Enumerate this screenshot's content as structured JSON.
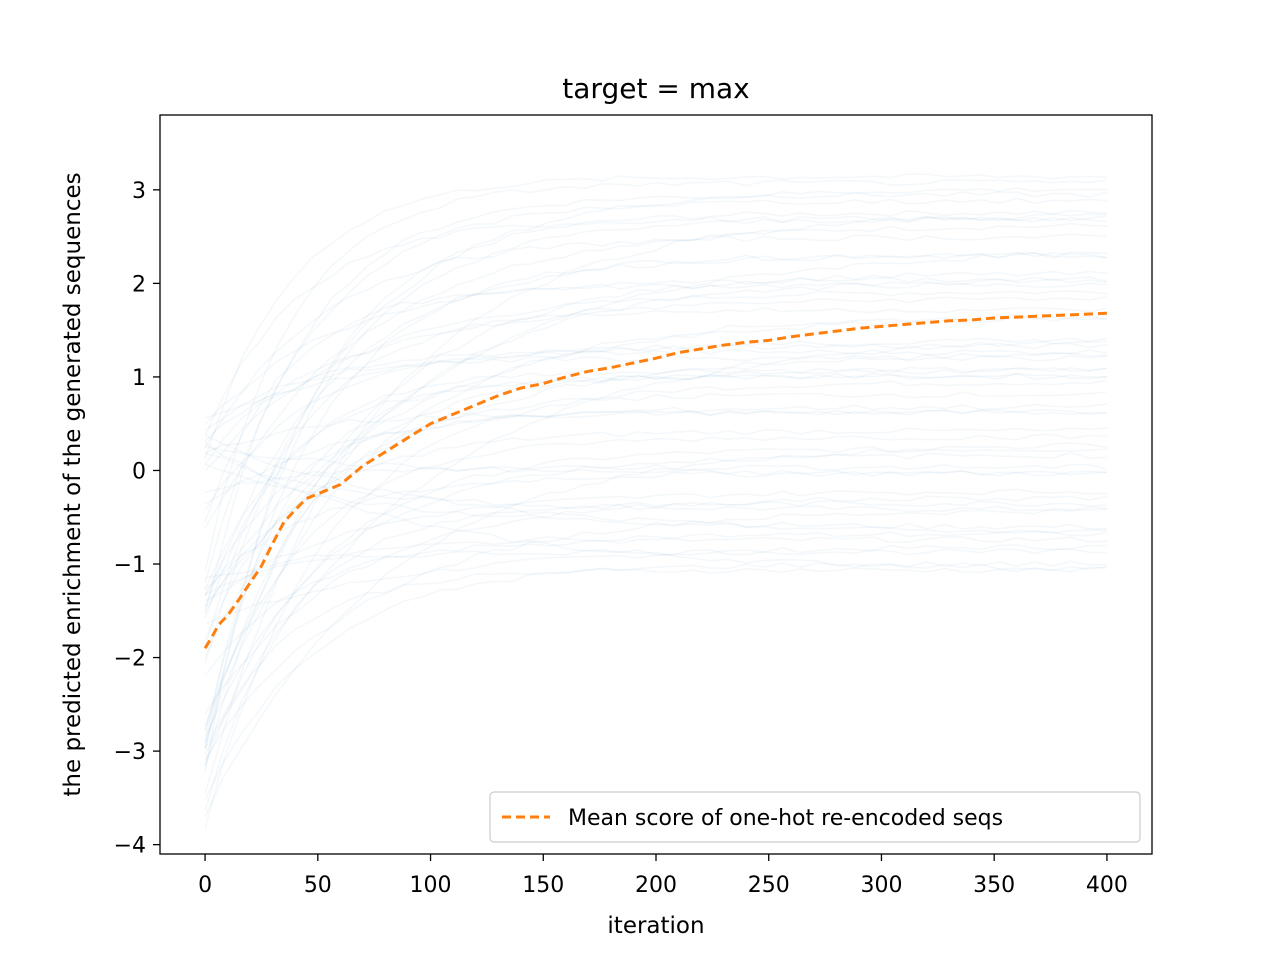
{
  "chart_data": {
    "type": "line",
    "title": "target = max",
    "xlabel": "iteration",
    "ylabel": "the predicted enrichment of the generated sequences",
    "xlim": [
      -20,
      420
    ],
    "ylim": [
      -4.1,
      3.8
    ],
    "xticks": [
      0,
      50,
      100,
      150,
      200,
      250,
      300,
      350,
      400
    ],
    "yticks": [
      -4,
      -3,
      -2,
      -1,
      0,
      1,
      2,
      3
    ],
    "xtick_labels": [
      "0",
      "50",
      "100",
      "150",
      "200",
      "250",
      "300",
      "350",
      "400"
    ],
    "ytick_labels": [
      "−4",
      "−3",
      "−2",
      "−1",
      "0",
      "1",
      "2",
      "3"
    ],
    "grid": false,
    "legend_position": "lower-right",
    "background_traces": {
      "description_visible": "faint light-blue individual sequence trajectories",
      "color": "#1f77b4",
      "start_range": [
        -3.8,
        1.0
      ],
      "end_range": [
        -1.2,
        3.2
      ],
      "x_range": [
        0,
        400
      ]
    },
    "series": [
      {
        "name": "Mean score of one-hot re-encoded seqs",
        "color": "#ff7f0e",
        "style": "dashed",
        "x": [
          0,
          3,
          6,
          10,
          15,
          20,
          25,
          30,
          35,
          40,
          45,
          50,
          60,
          70,
          80,
          90,
          100,
          110,
          120,
          130,
          140,
          150,
          160,
          170,
          180,
          190,
          200,
          210,
          220,
          230,
          240,
          250,
          260,
          270,
          280,
          290,
          300,
          310,
          320,
          330,
          340,
          350,
          360,
          370,
          380,
          390,
          400
        ],
        "y": [
          -1.9,
          -1.78,
          -1.65,
          -1.55,
          -1.38,
          -1.2,
          -1.02,
          -0.78,
          -0.55,
          -0.42,
          -0.3,
          -0.25,
          -0.15,
          0.05,
          0.2,
          0.35,
          0.5,
          0.6,
          0.7,
          0.8,
          0.88,
          0.93,
          1.0,
          1.06,
          1.1,
          1.15,
          1.2,
          1.26,
          1.3,
          1.34,
          1.37,
          1.39,
          1.43,
          1.46,
          1.49,
          1.52,
          1.54,
          1.56,
          1.58,
          1.6,
          1.61,
          1.63,
          1.64,
          1.65,
          1.66,
          1.67,
          1.68
        ]
      }
    ]
  }
}
